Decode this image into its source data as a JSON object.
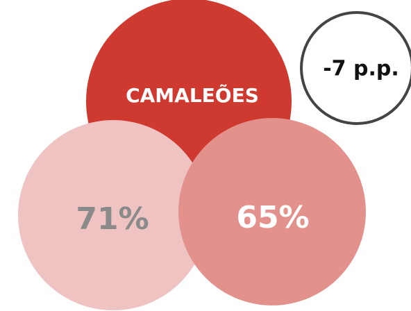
{
  "title": "CAMALEÕES",
  "circles": [
    {
      "label": "71%"
    },
    {
      "label": "65%"
    }
  ],
  "badge": "-7 p.p."
}
